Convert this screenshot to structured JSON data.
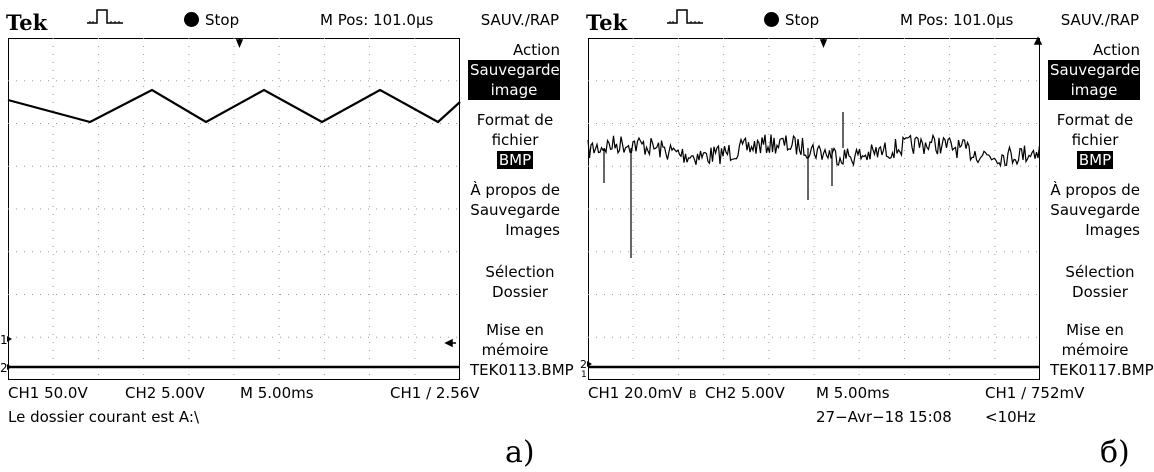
{
  "panels": [
    {
      "brand": "Tek",
      "status": "Stop",
      "mpos": "M Pos: 101.0µs",
      "menu_title": "SAUV./RAP",
      "menu": {
        "action_label": "Action",
        "action_value": "Sauvegarde image",
        "format_label": "Format de fichier",
        "format_value": "BMP",
        "about_label": "À propos de Sauvegarde Images",
        "select_label": "Sélection Dossier",
        "store_label": "Mise en mémoire",
        "store_value": "TEK0113.BMP"
      },
      "ch1_scale": "CH1  50.0V",
      "ch2_scale": "CH2  5.00V",
      "timebase": "M 5.00ms",
      "trigger": "CH1 ∕ 2.56V",
      "message": "Le dossier courant est A:\\",
      "figure_label": "а)"
    },
    {
      "brand": "Tek",
      "status": "Stop",
      "mpos": "M Pos: 101.0µs",
      "menu_title": "SAUV./RAP",
      "menu": {
        "action_label": "Action",
        "action_value": "Sauvegarde image",
        "format_label": "Format de fichier",
        "format_value": "BMP",
        "about_label": "À propos de Sauvegarde Images",
        "select_label": "Sélection Dossier",
        "store_label": "Mise en mémoire",
        "store_value": "TEK0117.BMP"
      },
      "ch1_scale": "CH1  20.0mV",
      "bw_mark": "B",
      "ch2_scale": "CH2  5.00V",
      "timebase": "M 5.00ms",
      "trigger": "CH1 ∕ 752mV",
      "datetime": "27−Avr−18 15:08",
      "freq": "<10Hz",
      "figure_label": "б)"
    }
  ]
}
